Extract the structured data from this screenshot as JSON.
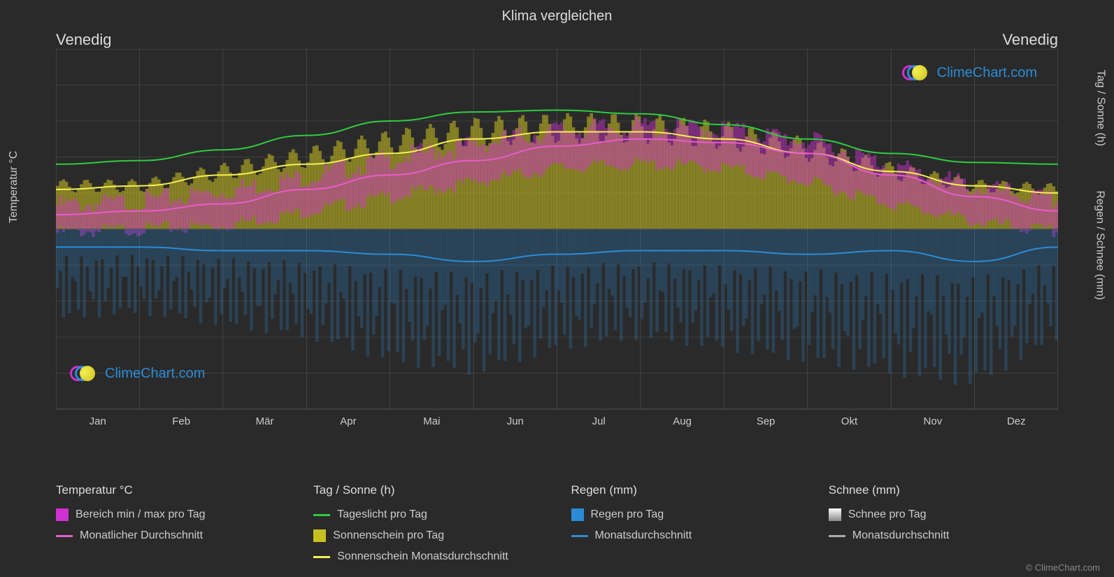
{
  "title": "Klima vergleichen",
  "city_left": "Venedig",
  "city_right": "Venedig",
  "watermark_text": "ClimeChart.com",
  "copyright": "© ClimeChart.com",
  "chart": {
    "type": "climate-combo",
    "background_color": "#2a2a2a",
    "grid_color": "#555555",
    "text_color": "#cccccc",
    "months": [
      "Jan",
      "Feb",
      "Mär",
      "Apr",
      "Mai",
      "Jun",
      "Jul",
      "Aug",
      "Sep",
      "Okt",
      "Nov",
      "Dez"
    ],
    "left_axis": {
      "label": "Temperatur °C",
      "min": -50,
      "max": 50,
      "step": 10
    },
    "right_axis_top": {
      "label": "Tag / Sonne (h)",
      "min": 0,
      "max": 24,
      "step": 6
    },
    "right_axis_bottom": {
      "label": "Regen / Schnee (mm)",
      "min": 0,
      "max": 40,
      "step": 10
    },
    "series": {
      "daylight": {
        "color": "#2ecc40",
        "values": [
          18,
          19,
          22,
          26,
          30,
          32.5,
          33,
          32,
          29,
          25,
          21,
          18.5,
          18
        ],
        "line_width": 2
      },
      "sunshine_avg": {
        "color": "#f5f050",
        "values": [
          11,
          12,
          15,
          18,
          21,
          25,
          27,
          27,
          25,
          21,
          16,
          12,
          10
        ],
        "line_width": 2
      },
      "temp_avg": {
        "color": "#e85cc9",
        "values": [
          4,
          5,
          7,
          11,
          15,
          19,
          23,
          25,
          24,
          21,
          15,
          9,
          5
        ],
        "line_width": 2
      },
      "rain_avg": {
        "color": "#2a8cd8",
        "values": [
          -5,
          -5,
          -6,
          -6,
          -7,
          -9,
          -7,
          -6,
          -6,
          -7,
          -6,
          -9,
          -5
        ],
        "line_width": 2
      },
      "sunshine_bars": {
        "color": "#c8c020",
        "opacity": 0.55,
        "values": [
          12,
          12,
          16,
          20,
          24,
          27,
          28,
          28,
          26,
          22,
          16,
          12,
          11
        ]
      },
      "temp_range_bars": {
        "color": "#d030d0",
        "opacity": 0.45,
        "low": [
          0,
          1,
          2,
          6,
          10,
          14,
          18,
          19,
          18,
          14,
          8,
          3,
          0
        ],
        "high": [
          8,
          9,
          12,
          16,
          21,
          25,
          29,
          30,
          29,
          26,
          19,
          13,
          9
        ]
      },
      "rain_bars": {
        "color": "#2a8cd8",
        "opacity": 0.25,
        "values": [
          -15,
          -14,
          -16,
          -18,
          -22,
          -24,
          -20,
          -18,
          -20,
          -22,
          -24,
          -26,
          -18
        ]
      }
    }
  },
  "legend": {
    "col1_heading": "Temperatur °C",
    "col1_item1": "Bereich min / max pro Tag",
    "col1_item1_color": "#d030d0",
    "col1_item2": "Monatlicher Durchschnitt",
    "col1_item2_color": "#e85cc9",
    "col2_heading": "Tag / Sonne (h)",
    "col2_item1": "Tageslicht pro Tag",
    "col2_item1_color": "#2ecc40",
    "col2_item2": "Sonnenschein pro Tag",
    "col2_item2_color": "#c8c020",
    "col2_item3": "Sonnenschein Monatsdurchschnitt",
    "col2_item3_color": "#f5f050",
    "col3_heading": "Regen (mm)",
    "col3_item1": "Regen pro Tag",
    "col3_item1_color": "#2a8cd8",
    "col3_item2": "Monatsdurchschnitt",
    "col3_item2_color": "#2a8cd8",
    "col4_heading": "Schnee (mm)",
    "col4_item1": "Schnee pro Tag",
    "col4_item1_color": "#dddddd",
    "col4_item2": "Monatsdurchschnitt",
    "col4_item2_color": "#aaaaaa"
  }
}
